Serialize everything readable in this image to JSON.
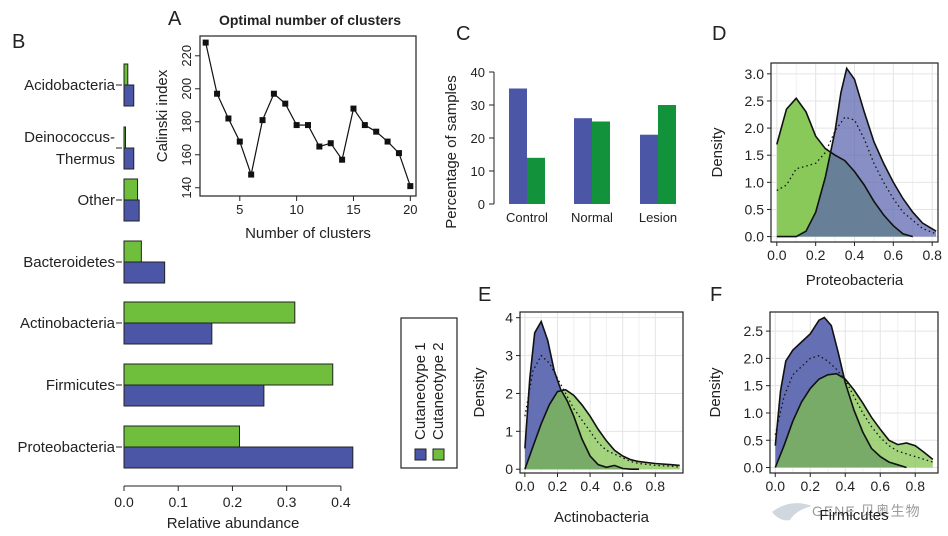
{
  "colors": {
    "cutaneotype1": "#4b56a6",
    "cutaneotype2": "#6fbf3c",
    "green_dark": "#12923a",
    "overlap": "#5b9a40",
    "grid": "#e4e4e4"
  },
  "legend": {
    "items": [
      "Cutaneotype 1",
      "Cutaneotype 2"
    ]
  },
  "watermark": "GENE 贝奥生物",
  "chart_data": [
    {
      "panel": "A",
      "type": "line",
      "title": "Optimal number of clusters",
      "xlabel": "Number of clusters",
      "ylabel": "Calinski index",
      "xlim": [
        1.5,
        20.5
      ],
      "ylim": [
        135,
        232
      ],
      "xticks": [
        5,
        10,
        15,
        20
      ],
      "yticks": [
        140,
        160,
        180,
        200,
        220
      ],
      "x": [
        2,
        3,
        4,
        5,
        6,
        7,
        8,
        9,
        10,
        11,
        12,
        13,
        14,
        15,
        16,
        17,
        18,
        19,
        20
      ],
      "y": [
        228,
        197,
        182,
        168,
        148,
        181,
        197,
        191,
        178,
        178,
        165,
        167,
        157,
        188,
        178,
        174,
        168,
        161,
        141
      ]
    },
    {
      "panel": "B",
      "type": "bar",
      "orientation": "horizontal",
      "xlabel": "Relative abundance",
      "xlim": [
        0,
        0.45
      ],
      "xticks": [
        0.0,
        0.1,
        0.2,
        0.3,
        0.4
      ],
      "categories": [
        "Acidobacteria",
        "Deinococcus-Thermus",
        "Other",
        "Bacteroidetes",
        "Actinobacteria",
        "Firmicutes",
        "Proteobacteria"
      ],
      "category_lines": [
        [
          "Acidobacteria"
        ],
        [
          "Deinococcus-",
          "Thermus"
        ],
        [
          "Other"
        ],
        [
          "Bacteroidetes"
        ],
        [
          "Actinobacteria"
        ],
        [
          "Firmicutes"
        ],
        [
          "Proteobacteria"
        ]
      ],
      "series": [
        {
          "name": "Cutaneotype 2",
          "values": [
            0.007,
            0.002,
            0.025,
            0.032,
            0.315,
            0.385,
            0.213
          ]
        },
        {
          "name": "Cutaneotype 1",
          "values": [
            0.018,
            0.018,
            0.028,
            0.075,
            0.162,
            0.258,
            0.422
          ]
        }
      ]
    },
    {
      "panel": "C",
      "type": "bar",
      "ylabel": "Percentage of samples",
      "ylim": [
        0,
        40
      ],
      "yticks": [
        0,
        10,
        20,
        30,
        40
      ],
      "categories": [
        "Control",
        "Normal",
        "Lesion"
      ],
      "series": [
        {
          "values": [
            35,
            26,
            21
          ]
        },
        {
          "values": [
            14,
            25,
            30
          ]
        }
      ]
    },
    {
      "panel": "D",
      "type": "area",
      "xlabel": "Proteobacteria",
      "ylabel": "Density",
      "xlim": [
        -0.03,
        0.83
      ],
      "ylim": [
        -0.1,
        3.2
      ],
      "xticks": [
        0.0,
        0.2,
        0.4,
        0.6,
        0.8
      ],
      "xtick_labels": [
        "0.0",
        "0.2",
        "0.4",
        "0.6",
        "0.8"
      ],
      "yticks": [
        0.0,
        0.5,
        1.0,
        1.5,
        2.0,
        2.5,
        3.0
      ],
      "ytick_labels": [
        "0.0",
        "0.5",
        "1.0",
        "1.5",
        "2.0",
        "2.5",
        "3.0"
      ],
      "series": [
        {
          "name": "Cutaneotype 2",
          "x": [
            0,
            0.05,
            0.1,
            0.15,
            0.2,
            0.25,
            0.3,
            0.35,
            0.4,
            0.45,
            0.5,
            0.55,
            0.6,
            0.65,
            0.7
          ],
          "y": [
            1.7,
            2.35,
            2.55,
            2.3,
            1.85,
            1.62,
            1.5,
            1.4,
            1.2,
            0.95,
            0.65,
            0.4,
            0.2,
            0.05,
            0
          ]
        },
        {
          "name": "Cutaneotype 1",
          "x": [
            0,
            0.1,
            0.15,
            0.2,
            0.25,
            0.3,
            0.33,
            0.36,
            0.4,
            0.45,
            0.5,
            0.55,
            0.6,
            0.65,
            0.7,
            0.75,
            0.82
          ],
          "y": [
            0,
            0,
            0.1,
            0.45,
            1.1,
            1.95,
            2.65,
            3.1,
            2.9,
            2.3,
            1.75,
            1.35,
            1.0,
            0.7,
            0.45,
            0.25,
            0.1
          ]
        },
        {
          "name": "dotted",
          "x": [
            0,
            0.05,
            0.1,
            0.15,
            0.2,
            0.25,
            0.3,
            0.35,
            0.4,
            0.45,
            0.5,
            0.55,
            0.6,
            0.65,
            0.7,
            0.75,
            0.82
          ],
          "y": [
            0.85,
            0.95,
            1.25,
            1.3,
            1.35,
            1.55,
            1.95,
            2.2,
            2.15,
            1.8,
            1.35,
            1.0,
            0.7,
            0.45,
            0.3,
            0.15,
            0.05
          ]
        }
      ]
    },
    {
      "panel": "E",
      "type": "area",
      "xlabel": "Actinobacteria",
      "ylabel": "Density",
      "xlim": [
        -0.03,
        0.97
      ],
      "ylim": [
        -0.1,
        4.15
      ],
      "xticks": [
        0.0,
        0.2,
        0.4,
        0.6,
        0.8
      ],
      "xtick_labels": [
        "0.0",
        "0.2",
        "0.4",
        "0.6",
        "0.8"
      ],
      "yticks": [
        0,
        1,
        2,
        3,
        4
      ],
      "ytick_labels": [
        "0",
        "1",
        "2",
        "3",
        "4"
      ],
      "series": [
        {
          "name": "Cutaneotype 1",
          "x": [
            0,
            0.03,
            0.06,
            0.1,
            0.14,
            0.18,
            0.22,
            0.26,
            0.3,
            0.35,
            0.4,
            0.45,
            0.5,
            0.55,
            0.6,
            0.65,
            0.7
          ],
          "y": [
            0.55,
            2.4,
            3.6,
            3.9,
            3.4,
            2.6,
            2.1,
            1.8,
            1.4,
            0.8,
            0.35,
            0.12,
            0.05,
            0.1,
            0.02,
            0,
            0
          ]
        },
        {
          "name": "Cutaneotype 2",
          "x": [
            0,
            0.05,
            0.1,
            0.15,
            0.2,
            0.25,
            0.3,
            0.35,
            0.4,
            0.45,
            0.5,
            0.55,
            0.6,
            0.65,
            0.7,
            0.8,
            0.9,
            0.95
          ],
          "y": [
            0,
            0.6,
            1.2,
            1.7,
            2.05,
            2.1,
            1.95,
            1.7,
            1.4,
            1.05,
            0.75,
            0.5,
            0.35,
            0.25,
            0.2,
            0.15,
            0.12,
            0.1
          ]
        },
        {
          "name": "dotted",
          "x": [
            0,
            0.05,
            0.1,
            0.15,
            0.2,
            0.25,
            0.3,
            0.35,
            0.4,
            0.45,
            0.5,
            0.55,
            0.6,
            0.65,
            0.7,
            0.8,
            0.9,
            0.95
          ],
          "y": [
            1.4,
            2.6,
            3.0,
            2.8,
            2.4,
            2.0,
            1.6,
            1.3,
            1.0,
            0.7,
            0.5,
            0.4,
            0.3,
            0.2,
            0.15,
            0.1,
            0.08,
            0.05
          ]
        }
      ]
    },
    {
      "panel": "F",
      "type": "area",
      "xlabel": "Firmicutes",
      "ylabel": "Density",
      "xlim": [
        -0.03,
        0.93
      ],
      "ylim": [
        -0.1,
        2.85
      ],
      "xticks": [
        0.0,
        0.2,
        0.4,
        0.6,
        0.8
      ],
      "xtick_labels": [
        "0.0",
        "0.2",
        "0.4",
        "0.6",
        "0.8"
      ],
      "yticks": [
        0.0,
        0.5,
        1.0,
        1.5,
        2.0,
        2.5
      ],
      "ytick_labels": [
        "0.0",
        "0.5",
        "1.0",
        "1.5",
        "2.0",
        "2.5"
      ],
      "series": [
        {
          "name": "Cutaneotype 1",
          "x": [
            0,
            0.03,
            0.06,
            0.1,
            0.15,
            0.2,
            0.25,
            0.28,
            0.32,
            0.36,
            0.4,
            0.45,
            0.5,
            0.55,
            0.6,
            0.65,
            0.7,
            0.75
          ],
          "y": [
            0.4,
            1.4,
            1.95,
            2.15,
            2.3,
            2.45,
            2.7,
            2.75,
            2.6,
            2.1,
            1.55,
            1.05,
            0.65,
            0.35,
            0.2,
            0.1,
            0.05,
            0
          ]
        },
        {
          "name": "Cutaneotype 2",
          "x": [
            0,
            0.05,
            0.1,
            0.15,
            0.2,
            0.25,
            0.3,
            0.35,
            0.4,
            0.45,
            0.5,
            0.55,
            0.6,
            0.65,
            0.7,
            0.75,
            0.8,
            0.85,
            0.9
          ],
          "y": [
            0,
            0.4,
            0.85,
            1.2,
            1.45,
            1.62,
            1.7,
            1.72,
            1.62,
            1.42,
            1.18,
            0.92,
            0.7,
            0.5,
            0.42,
            0.45,
            0.4,
            0.28,
            0.15
          ]
        },
        {
          "name": "dotted",
          "x": [
            0,
            0.05,
            0.1,
            0.15,
            0.2,
            0.25,
            0.3,
            0.35,
            0.4,
            0.45,
            0.5,
            0.55,
            0.6,
            0.65,
            0.7,
            0.8,
            0.9
          ],
          "y": [
            0.6,
            1.3,
            1.7,
            1.85,
            2.0,
            2.05,
            1.95,
            1.8,
            1.6,
            1.3,
            1.0,
            0.75,
            0.55,
            0.4,
            0.3,
            0.2,
            0.1
          ]
        }
      ]
    }
  ]
}
